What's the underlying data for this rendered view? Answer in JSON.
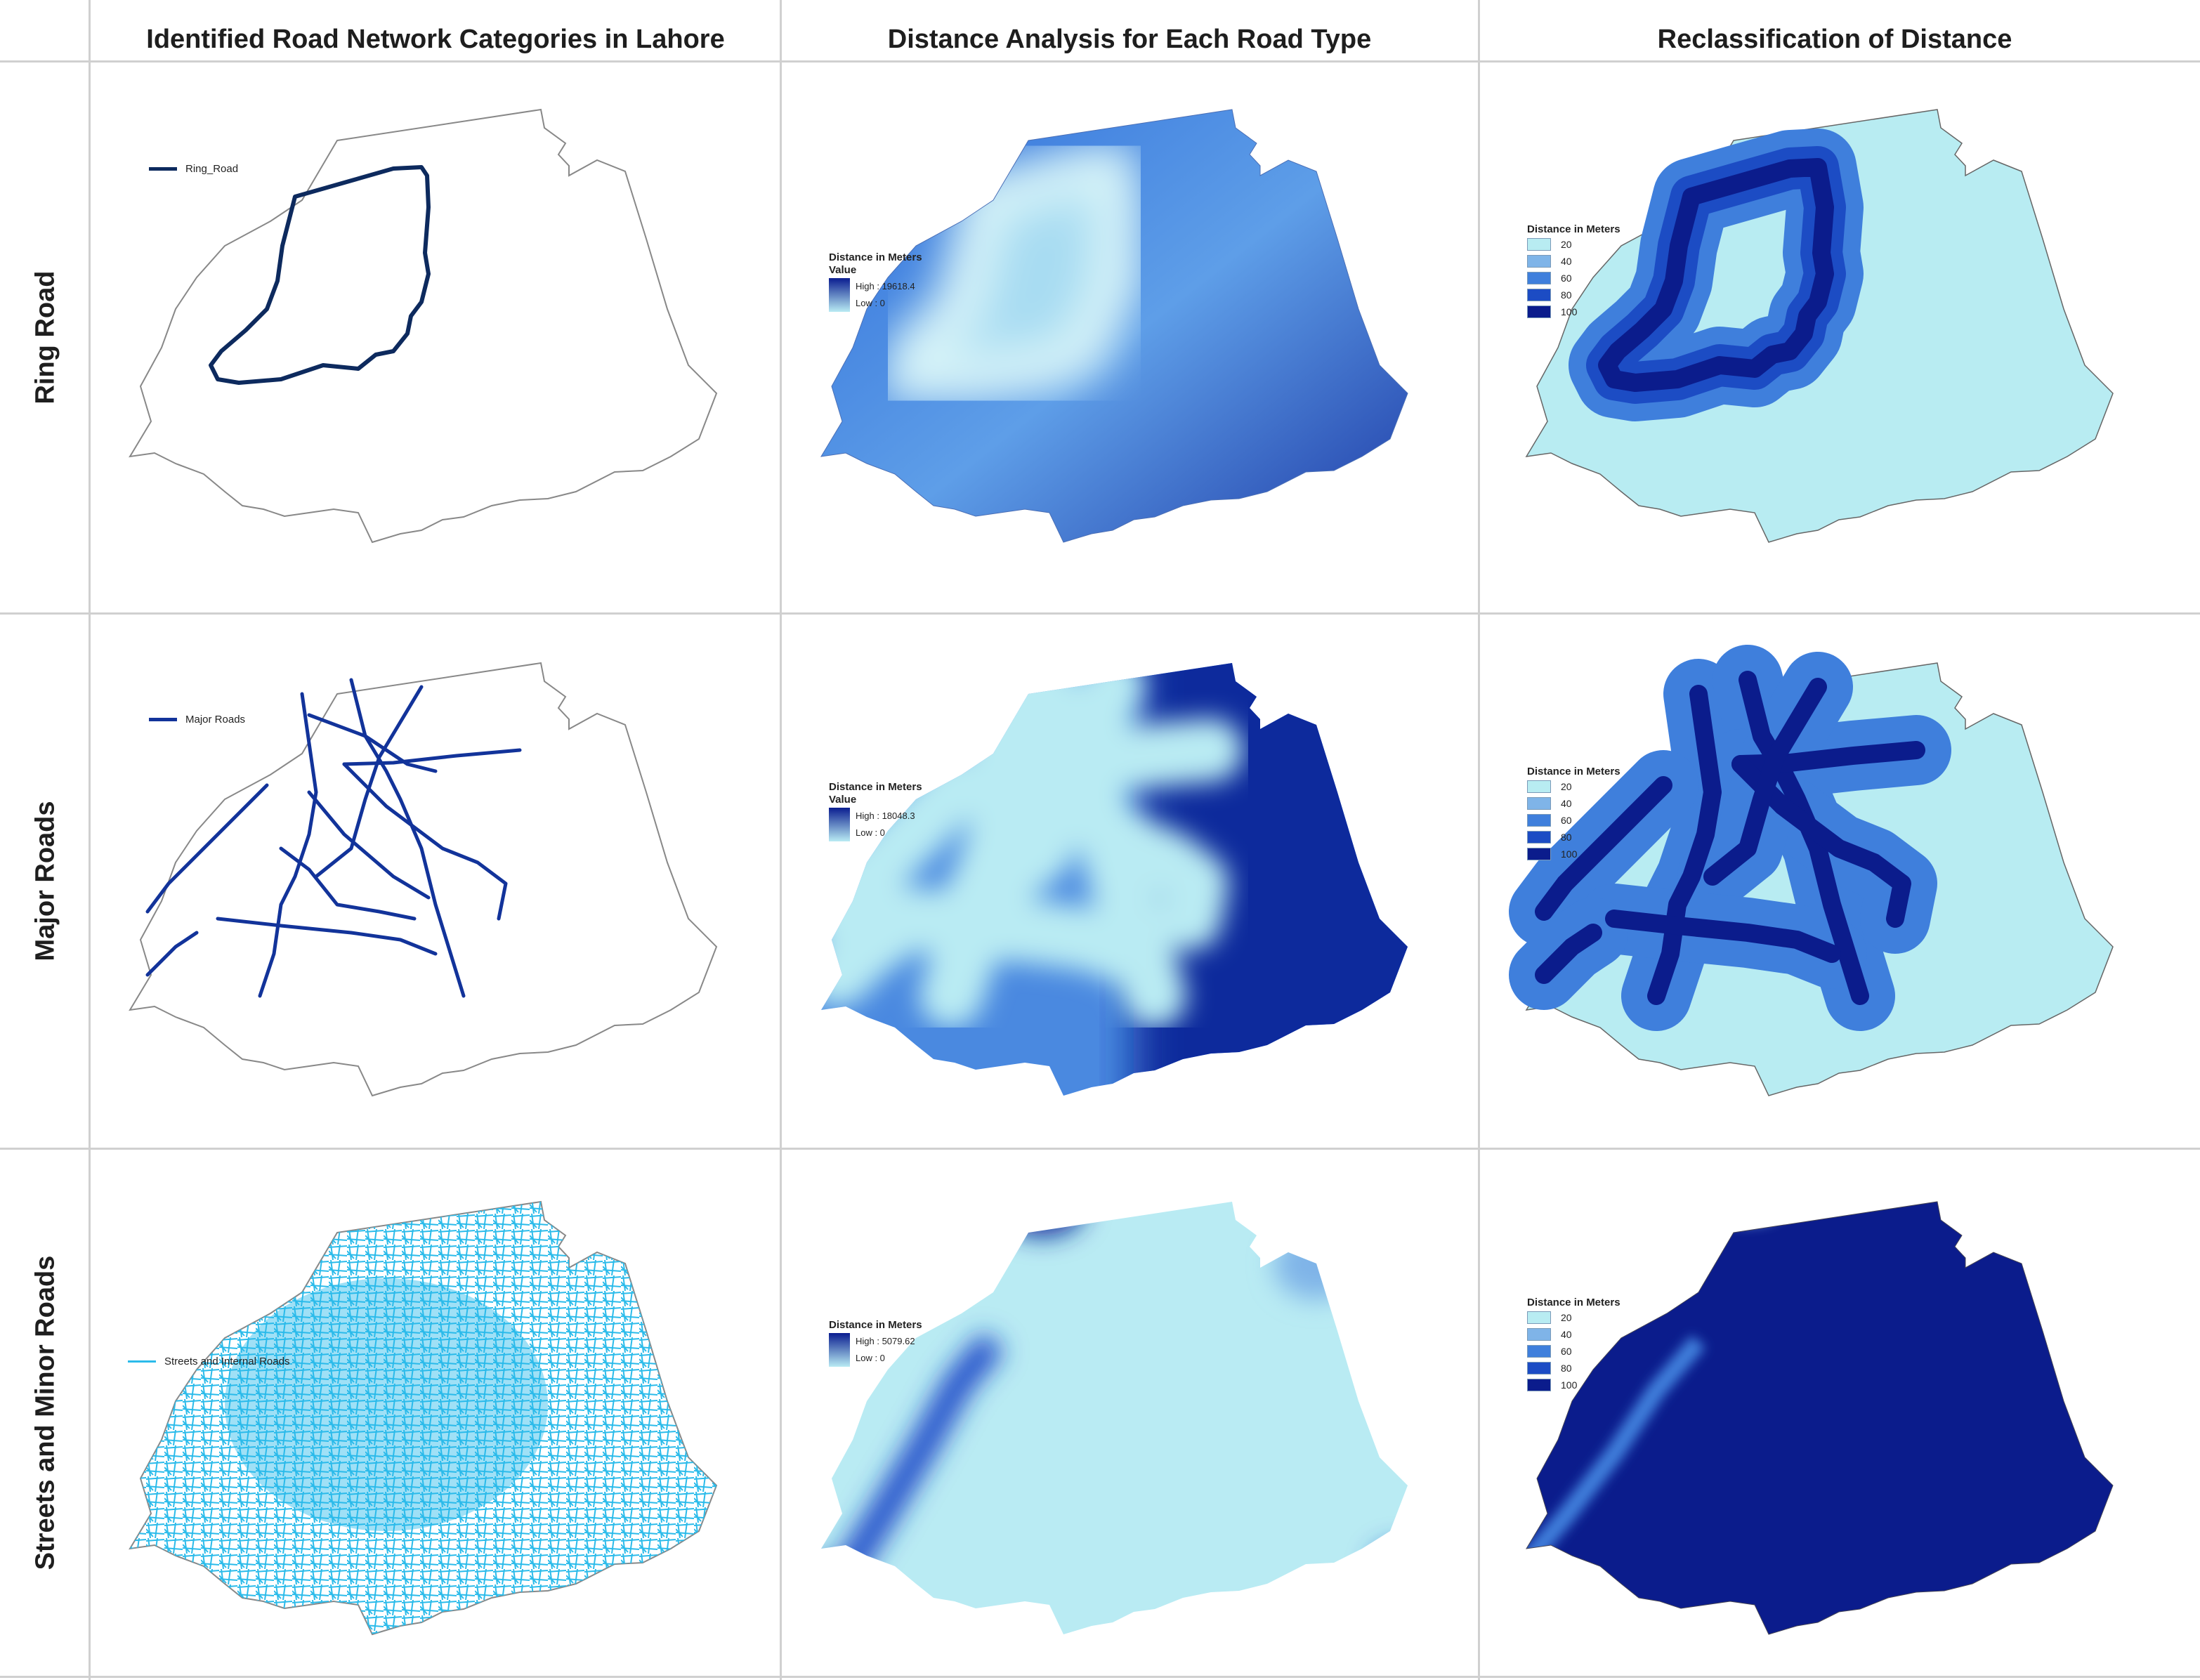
{
  "columns": [
    "Identified Road Network Categories in Lahore",
    "Distance Analysis for Each Road Type",
    "Reclassification of Distance"
  ],
  "rows": [
    {
      "label": "Ring Road",
      "network_legend": "Ring_Road",
      "distance_high": "High : 19618.4",
      "distance_low": "Low : 0"
    },
    {
      "label": "Major Roads",
      "network_legend": "Major Roads",
      "distance_high": "High : 18048.3",
      "distance_low": "Low : 0"
    },
    {
      "label": "Streets and Minor Roads",
      "network_legend": "Streets and Internal Roads",
      "distance_high": "High : 5079.62",
      "distance_low": "Low : 0"
    }
  ],
  "legend": {
    "title": "Distance in Meters",
    "value_label": "Value",
    "classes": [
      "20",
      "40",
      "60",
      "80",
      "100"
    ]
  },
  "colors": {
    "ring_road": "#0d2a5e",
    "major_roads": "#12339a",
    "streets": "#2bbbea",
    "class_20": "#b8ecf2",
    "class_40": "#7fb4e8",
    "class_60": "#3f7fdc",
    "class_80": "#1c4cc4",
    "class_100": "#0b1c8c",
    "gradient_high": "#0a1d90",
    "gradient_low": "#b9ebf3"
  }
}
